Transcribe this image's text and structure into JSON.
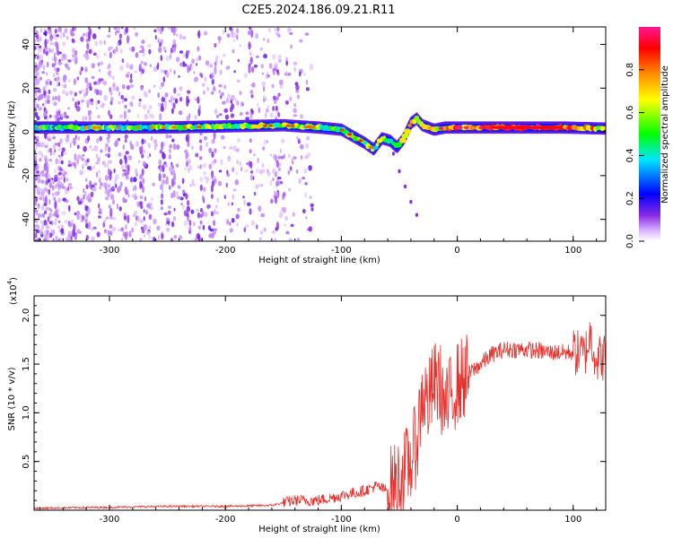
{
  "title": "C2E5.2024.186.09.21.R11",
  "chart_data": [
    {
      "type": "heatmap",
      "xlabel": "Height of straight line (km)",
      "ylabel": "Frequency (Hz)",
      "xlim": [
        -365,
        128
      ],
      "ylim": [
        -50,
        48
      ],
      "x_ticks": [
        -300,
        -200,
        -100,
        0,
        100
      ],
      "y_ticks": [
        -40,
        -20,
        0,
        20,
        40
      ],
      "colorbar": {
        "label": "Normalized spectral amplitude",
        "range": [
          0,
          1
        ],
        "ticks": [
          "0.0",
          "0.2",
          "0.4",
          "0.6",
          "0.8"
        ],
        "tick_values": [
          0,
          0.2,
          0.4,
          0.6,
          0.8
        ],
        "colors": [
          "#ffffff",
          "#d9b3ff",
          "#8a2be2",
          "#0000ff",
          "#00e5ff",
          "#00ff00",
          "#ffff00",
          "#ff8c00",
          "#ff0000",
          "#ff1493"
        ]
      },
      "ridge": {
        "x": [
          -365,
          -300,
          -250,
          -200,
          -150,
          -120,
          -100,
          -90,
          -80,
          -72,
          -65,
          -58,
          -52,
          -46,
          -40,
          -35,
          -30,
          -25,
          -20,
          -10,
          0,
          30,
          60,
          90,
          128
        ],
        "y": [
          2,
          2,
          2,
          2.5,
          3,
          2,
          1,
          -2,
          -5,
          -8,
          -3,
          -4,
          -7,
          -3,
          4,
          6,
          3,
          2,
          1,
          2,
          2,
          2,
          2,
          2,
          1.5
        ],
        "amplitude": [
          0.45,
          0.5,
          0.5,
          0.55,
          0.55,
          0.5,
          0.55,
          0.6,
          0.55,
          0.5,
          0.55,
          0.5,
          0.5,
          0.6,
          0.65,
          0.6,
          0.6,
          0.6,
          0.65,
          0.7,
          0.75,
          0.85,
          0.95,
          0.85,
          0.7
        ]
      },
      "branch": {
        "x": [
          -55,
          -50,
          -45,
          -40,
          -35
        ],
        "y": [
          -10,
          -18,
          -25,
          -32,
          -38
        ]
      }
    },
    {
      "type": "line",
      "xlabel": "Height of straight line (km)",
      "ylabel": "SNR (10 * v/v)",
      "y_multiplier_label": "(x10",
      "y_multiplier_exp": "4",
      "xlim": [
        -365,
        128
      ],
      "ylim": [
        0,
        2.2
      ],
      "x_ticks": [
        -300,
        -200,
        -100,
        0,
        100
      ],
      "y_ticks": [
        0.5,
        1.0,
        1.5,
        2.0
      ],
      "y_tick_labels": [
        "0.5",
        "1.0",
        "1.5",
        "2.0"
      ],
      "color": "#e8302c",
      "series": [
        {
          "x": [
            -365,
            -300,
            -250,
            -200,
            -160,
            -140,
            -120,
            -100,
            -80,
            -70,
            -60,
            -50,
            -40,
            -35,
            -30,
            -25,
            -20,
            -15,
            -10,
            -5,
            0,
            10,
            20,
            30,
            40,
            60,
            80,
            100,
            110,
            115,
            120,
            128
          ],
          "y": [
            0.02,
            0.03,
            0.04,
            0.04,
            0.05,
            0.1,
            0.1,
            0.15,
            0.2,
            0.25,
            0.2,
            0.3,
            0.5,
            0.7,
            1.2,
            1.1,
            1.3,
            1.3,
            1.0,
            1.2,
            1.3,
            1.4,
            1.5,
            1.6,
            1.65,
            1.65,
            1.62,
            1.62,
            1.6,
            1.8,
            1.55,
            1.58
          ]
        }
      ]
    }
  ]
}
